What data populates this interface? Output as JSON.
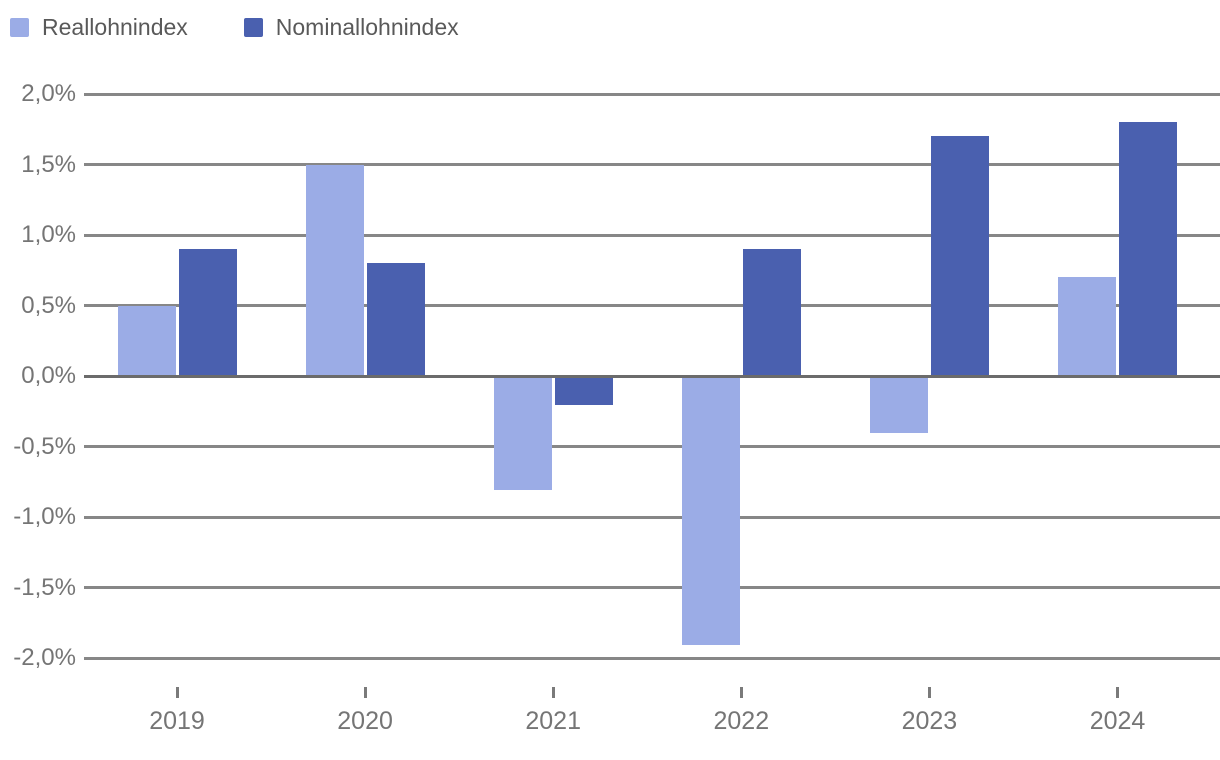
{
  "legend": {
    "items": [
      {
        "label": "Reallohnindex",
        "color": "#9BACE6"
      },
      {
        "label": "Nominallohnindex",
        "color": "#4A60AF"
      }
    ]
  },
  "chart_data": {
    "type": "bar",
    "title": "",
    "xlabel": "",
    "ylabel": "",
    "categories": [
      "2019",
      "2020",
      "2021",
      "2022",
      "2023",
      "2024"
    ],
    "series": [
      {
        "name": "Reallohnindex",
        "color": "#9BACE6",
        "values": [
          0.5,
          1.5,
          -0.8,
          -1.9,
          -0.4,
          0.7
        ]
      },
      {
        "name": "Nominallohnindex",
        "color": "#4A60AF",
        "values": [
          0.9,
          0.8,
          -0.2,
          0.9,
          1.7,
          1.8
        ]
      }
    ],
    "ylim": [
      -2.0,
      2.0
    ],
    "y_ticks": [
      {
        "value": 2.0,
        "label": "2,0%"
      },
      {
        "value": 1.5,
        "label": "1,5%"
      },
      {
        "value": 1.0,
        "label": "1,0%"
      },
      {
        "value": 0.5,
        "label": "0,5%"
      },
      {
        "value": 0.0,
        "label": "0,0%"
      },
      {
        "value": -0.5,
        "label": "-0,5%"
      },
      {
        "value": -1.0,
        "label": "-1,0%"
      },
      {
        "value": -1.5,
        "label": "-1,5%"
      },
      {
        "value": -2.0,
        "label": "-2,0%"
      }
    ],
    "value_suffix": "%",
    "decimal_separator": ",",
    "grid": "horizontal",
    "legend_position": "top-left",
    "colors": {
      "gridline": "#878787",
      "zero_line": "#6b6b6b",
      "axis_text": "#757575",
      "legend_text": "#595959",
      "background": "#ffffff"
    }
  }
}
